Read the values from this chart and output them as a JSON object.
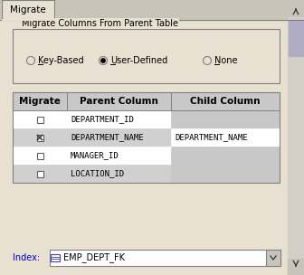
{
  "bg_color": "#e8e0d0",
  "tab_text": "Migrate",
  "tab_bg": "#d4cfc4",
  "tab_active_bg": "#e8e0d0",
  "groupbox_title": "Migrate Columns From Parent Table",
  "radio_options": [
    "Key-Based",
    "User-Defined",
    "None"
  ],
  "radio_selected": 1,
  "radio_underline": [
    0,
    0,
    0
  ],
  "table_headers": [
    "Migrate",
    "Parent Column",
    "Child Column"
  ],
  "table_rows": [
    {
      "checked": false,
      "parent": "DEPARTMENT_ID",
      "child": ""
    },
    {
      "checked": true,
      "parent": "DEPARTMENT_NAME",
      "child": "DEPARTMENT_NAME"
    },
    {
      "checked": false,
      "parent": "MANAGER_ID",
      "child": ""
    },
    {
      "checked": false,
      "parent": "LOCATION_ID",
      "child": ""
    }
  ],
  "header_bg": "#c8c8c8",
  "row_bg_odd": "#ffffff",
  "row_bg_even": "#d0d0d0",
  "child_col_bg": "#c8c8c8",
  "index_label": "Index:",
  "index_value": "EMP_DEPT_FK",
  "index_label_color": "#0000cc",
  "scrollbar_color": "#a0a0b0",
  "border_color": "#808080",
  "text_color": "#000000",
  "font_size": 7,
  "header_font_size": 7.5
}
